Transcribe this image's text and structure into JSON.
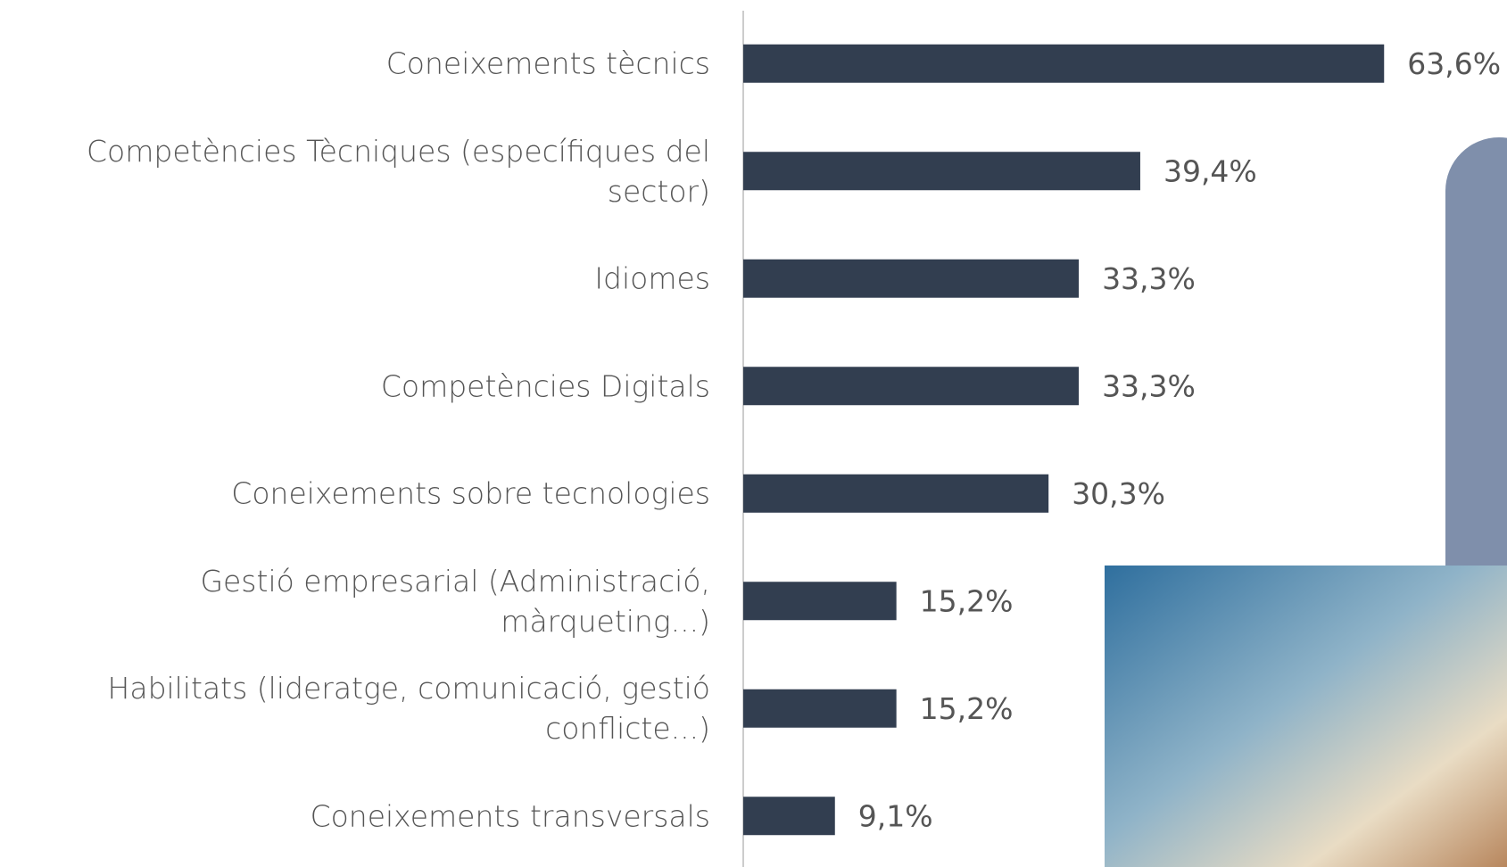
{
  "chart_data": {
    "type": "bar",
    "orientation": "horizontal",
    "categories": [
      "Coneixements tècnics",
      "Competències Tècniques (específiques del sector)",
      "Idiomes",
      "Competències Digitals",
      "Coneixements sobre tecnologies",
      "Gestió empresarial (Administració, màrqueting...)",
      "Habilitats (lideratge, comunicació, gestió conflicte...)",
      "Coneixements transversals"
    ],
    "values": [
      63.6,
      39.4,
      33.3,
      33.3,
      30.3,
      15.2,
      15.2,
      9.1
    ],
    "value_labels": [
      "63,6%",
      "39,4%",
      "33,3%",
      "33,3%",
      "30,3%",
      "15,2%",
      "15,2%",
      "9,1%"
    ],
    "color": "#323e50",
    "xlim": [
      0,
      75
    ]
  }
}
